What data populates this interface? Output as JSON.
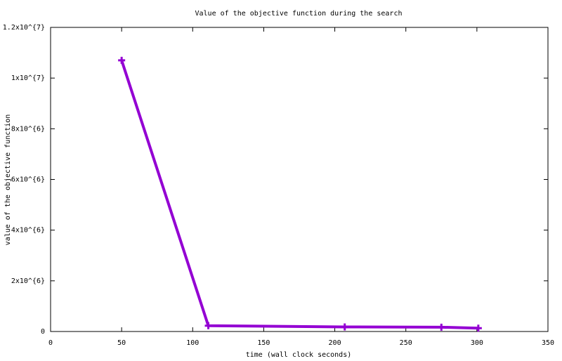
{
  "chart_data": {
    "type": "line",
    "title": "Value of the objective function during the search",
    "x_label": "time (wall clock seconds)",
    "y_label": "value of the objective function",
    "x": [
      50,
      111,
      207,
      275,
      301
    ],
    "series": [
      {
        "color": "#9400d3",
        "values": [
          10700000,
          230000,
          180000,
          170000,
          130000
        ]
      }
    ],
    "xlim": [
      0,
      350
    ],
    "xticks": [
      0,
      50,
      100,
      150,
      200,
      250,
      300,
      350
    ],
    "ylim": [
      0,
      12000000
    ],
    "yticks": [
      0,
      {
        "value": 2000000,
        "label": "2x10^{6}"
      },
      {
        "value": 4000000,
        "label": "4x10^{6}"
      },
      {
        "value": 6000000,
        "label": "6x10^{6}"
      },
      {
        "value": 8000000,
        "label": "8x10^{6}"
      },
      {
        "value": 10000000,
        "label": "1x10^{7}"
      },
      {
        "value": 12000000,
        "label": "1.2x10^{7}"
      }
    ],
    "grid": false
  }
}
